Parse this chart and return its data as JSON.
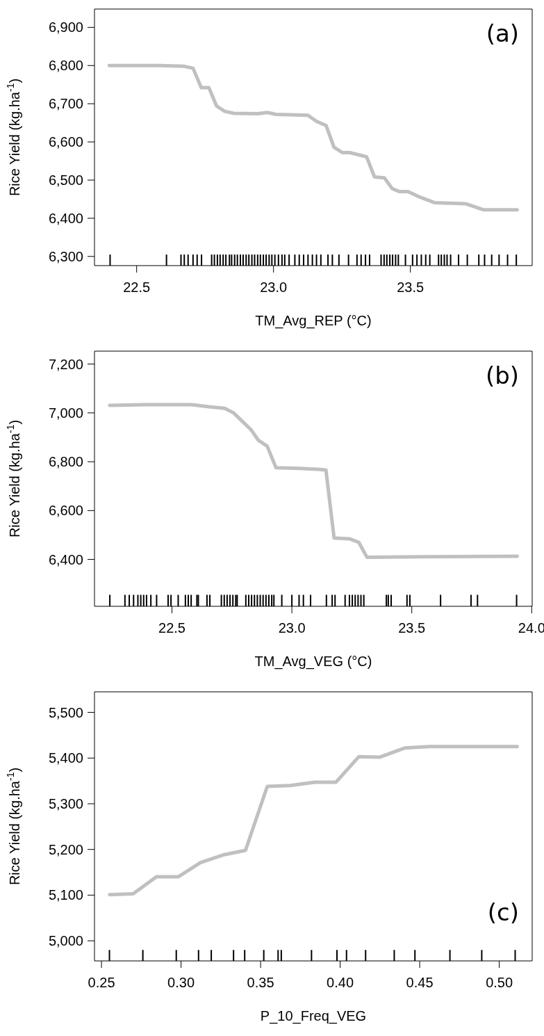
{
  "chart_data": [
    {
      "type": "line",
      "xlabel": "TM_Avg_REP (°C)",
      "ylabel": "Rice Yield (kg.ha$^{-1}$)",
      "annotations": [
        "(a)"
      ],
      "xlim": [
        22.346,
        23.945
      ],
      "ylim": [
        6276,
        6948
      ],
      "xticks": [
        22.5,
        {
          "value": 23,
          "label": "23.0"
        },
        23.5
      ],
      "yticks": [
        {
          "value": 6300,
          "label": "6,300"
        },
        {
          "value": 6400,
          "label": "6,400"
        },
        {
          "value": 6500,
          "label": "6,500"
        },
        {
          "value": 6600,
          "label": "6,600"
        },
        {
          "value": 6700,
          "label": "6,700"
        },
        {
          "value": 6800,
          "label": "6,800"
        },
        {
          "value": 6900,
          "label": "6,900"
        }
      ],
      "line_style": "solid",
      "series": [
        {
          "color": "#c0c0c0",
          "x": [
            22.4,
            22.584,
            22.674,
            22.706,
            22.736,
            22.764,
            22.792,
            22.822,
            22.854,
            22.944,
            22.977,
            23.009,
            23.125,
            23.157,
            23.192,
            23.221,
            23.251,
            23.279,
            23.34,
            23.369,
            23.405,
            23.433,
            23.459,
            23.491,
            23.536,
            23.588,
            23.703,
            23.768,
            23.89
          ],
          "values": [
            6800,
            6800,
            6798,
            6793,
            6742,
            6742,
            6694,
            6680,
            6675,
            6674,
            6677,
            6672,
            6670,
            6654,
            6643,
            6586,
            6572,
            6572,
            6561,
            6508,
            6506,
            6478,
            6470,
            6470,
            6455,
            6441,
            6438,
            6422,
            6422
          ]
        },
        {
          "type": "bar",
          "color": "#000000",
          "x": [
            22.403,
            22.609,
            22.662,
            22.674,
            22.688,
            22.706,
            22.721,
            22.737,
            22.774,
            22.784,
            22.795,
            22.805,
            22.816,
            22.826,
            22.839,
            22.847,
            22.858,
            22.868,
            22.879,
            22.889,
            22.9,
            22.91,
            22.921,
            22.931,
            22.942,
            22.952,
            22.963,
            22.973,
            22.984,
            22.994,
            23.005,
            23.018,
            23.031,
            23.041,
            23.057,
            23.078,
            23.094,
            23.11,
            23.126,
            23.142,
            23.157,
            23.173,
            23.199,
            23.215,
            23.239,
            23.274,
            23.305,
            23.32,
            23.336,
            23.351,
            23.393,
            23.404,
            23.414,
            23.425,
            23.435,
            23.446,
            23.456,
            23.482,
            23.508,
            23.524,
            23.54,
            23.556,
            23.571,
            23.603,
            23.613,
            23.624,
            23.634,
            23.647,
            23.676,
            23.708,
            23.75,
            23.771,
            23.797,
            23.824,
            23.855,
            23.887
          ],
          "base": [
            6276,
            6276,
            6276,
            6276,
            6276,
            6276,
            6276,
            6276,
            6276,
            6276,
            6276,
            6276,
            6276,
            6276,
            6276,
            6276,
            6276,
            6276,
            6276,
            6276,
            6276,
            6276,
            6276,
            6276,
            6276,
            6276,
            6276,
            6276,
            6276,
            6276,
            6276,
            6276,
            6276,
            6276,
            6276,
            6276,
            6276,
            6276,
            6276,
            6276,
            6276,
            6276,
            6276,
            6276,
            6276,
            6276,
            6276,
            6276,
            6276,
            6276,
            6276,
            6276,
            6276,
            6276,
            6276,
            6276,
            6276,
            6276,
            6276,
            6276,
            6276,
            6276,
            6276,
            6276,
            6276,
            6276,
            6276,
            6276,
            6276,
            6276,
            6276,
            6276,
            6276,
            6276,
            6276,
            6276
          ],
          "values": [
            29,
            29,
            29,
            29,
            29,
            29,
            29,
            29,
            29,
            29,
            29,
            29,
            29,
            29,
            29,
            29,
            29,
            29,
            29,
            29,
            29,
            29,
            29,
            29,
            29,
            29,
            29,
            29,
            29,
            29,
            29,
            29,
            29,
            29,
            29,
            29,
            29,
            29,
            29,
            29,
            29,
            29,
            29,
            29,
            29,
            29,
            29,
            29,
            29,
            29,
            29,
            29,
            29,
            29,
            29,
            29,
            29,
            29,
            29,
            29,
            29,
            29,
            29,
            29,
            29,
            29,
            29,
            29,
            29,
            29,
            29,
            29,
            29,
            29,
            29,
            29
          ]
        }
      ]
    },
    {
      "type": "line",
      "xlabel": "TM_Avg_VEG (°C)",
      "ylabel": "Rice Yield (kg.ha$^{-1}$)",
      "annotations": [
        "(b)"
      ],
      "xlim": [
        22.177,
        24.002
      ],
      "ylim": [
        6208,
        7253
      ],
      "xticks": [
        22.5,
        {
          "value": 23,
          "label": "23.0"
        },
        23.5,
        {
          "value": 24,
          "label": "24.0"
        }
      ],
      "yticks": [
        {
          "value": 6400,
          "label": "6,400"
        },
        {
          "value": 6600,
          "label": "6,600"
        },
        {
          "value": 6800,
          "label": "6,800"
        },
        {
          "value": 7000,
          "label": "7,000"
        },
        {
          "value": 7200,
          "label": "7,200"
        }
      ],
      "line_style": "solid",
      "series": [
        {
          "color": "#c0c0c0",
          "x": [
            22.24,
            22.39,
            22.581,
            22.654,
            22.72,
            22.757,
            22.83,
            22.86,
            22.897,
            22.934,
            23.022,
            23.11,
            23.142,
            23.176,
            23.242,
            23.279,
            23.313,
            23.536,
            23.94
          ],
          "values": [
            7031,
            7034,
            7034,
            7025,
            7019,
            7000,
            6931,
            6888,
            6864,
            6775,
            6773,
            6769,
            6766,
            6488,
            6484,
            6470,
            6409,
            6411,
            6413
          ]
        },
        {
          "type": "bar",
          "color": "#000000",
          "x": [
            22.241,
            22.304,
            22.322,
            22.34,
            22.358,
            22.37,
            22.382,
            22.394,
            22.412,
            22.436,
            22.484,
            22.496,
            22.526,
            22.556,
            22.568,
            22.58,
            22.604,
            22.61,
            22.646,
            22.658,
            22.706,
            22.718,
            22.73,
            22.742,
            22.754,
            22.766,
            22.772,
            22.808,
            22.82,
            22.832,
            22.844,
            22.856,
            22.868,
            22.88,
            22.892,
            22.904,
            22.916,
            22.925,
            22.958,
            23.0,
            23.03,
            23.048,
            23.078,
            23.144,
            23.168,
            23.18,
            23.222,
            23.24,
            23.252,
            23.264,
            23.276,
            23.288,
            23.3,
            23.394,
            23.402,
            23.414,
            23.48,
            23.492,
            23.62,
            23.747,
            23.774,
            23.937
          ],
          "base": [
            6208,
            6208,
            6208,
            6208,
            6208,
            6208,
            6208,
            6208,
            6208,
            6208,
            6208,
            6208,
            6208,
            6208,
            6208,
            6208,
            6208,
            6208,
            6208,
            6208,
            6208,
            6208,
            6208,
            6208,
            6208,
            6208,
            6208,
            6208,
            6208,
            6208,
            6208,
            6208,
            6208,
            6208,
            6208,
            6208,
            6208,
            6208,
            6208,
            6208,
            6208,
            6208,
            6208,
            6208,
            6208,
            6208,
            6208,
            6208,
            6208,
            6208,
            6208,
            6208,
            6208,
            6208,
            6208,
            6208,
            6208,
            6208,
            6208,
            6208,
            6208,
            6208
          ],
          "values": [
            47,
            47,
            47,
            47,
            47,
            47,
            47,
            47,
            47,
            47,
            47,
            47,
            47,
            47,
            47,
            47,
            47,
            47,
            47,
            47,
            47,
            47,
            47,
            47,
            47,
            47,
            47,
            47,
            47,
            47,
            47,
            47,
            47,
            47,
            47,
            47,
            47,
            47,
            47,
            47,
            47,
            47,
            47,
            47,
            47,
            47,
            47,
            47,
            47,
            47,
            47,
            47,
            47,
            47,
            47,
            47,
            47,
            47,
            47,
            47,
            47,
            47
          ]
        }
      ]
    },
    {
      "type": "line",
      "xlabel": "P_10_Freq_VEG",
      "ylabel": "Rice Yield (kg.ha$^{-1}$)",
      "annotations": [
        "(c)"
      ],
      "xlim": [
        0.2456,
        0.5207
      ],
      "ylim": [
        4956,
        5545
      ],
      "xticks": [
        0.25,
        {
          "value": 0.3,
          "label": "0.30"
        },
        0.35,
        {
          "value": 0.4,
          "label": "0.40"
        },
        0.45,
        {
          "value": 0.5,
          "label": "0.50"
        }
      ],
      "yticks": [
        {
          "value": 5000,
          "label": "5,000"
        },
        {
          "value": 5100,
          "label": "5,100"
        },
        {
          "value": 5200,
          "label": "5,200"
        },
        {
          "value": 5300,
          "label": "5,300"
        },
        {
          "value": 5400,
          "label": "5,400"
        },
        {
          "value": 5500,
          "label": "5,500"
        }
      ],
      "line_style": "solid",
      "series": [
        {
          "color": "#c0c0c0",
          "x": [
            0.2551,
            0.2699,
            0.2845,
            0.2982,
            0.3122,
            0.3265,
            0.3405,
            0.3542,
            0.3686,
            0.3841,
            0.3973,
            0.4117,
            0.425,
            0.4405,
            0.456,
            0.5113
          ],
          "values": [
            5101,
            5103,
            5140,
            5140,
            5171,
            5188,
            5198,
            5338,
            5340,
            5347,
            5347,
            5403,
            5402,
            5422,
            5425,
            5425
          ]
        },
        {
          "type": "bar",
          "color": "#000000",
          "x": [
            0.255,
            0.276,
            0.297,
            0.311,
            0.319,
            0.333,
            0.34,
            0.352,
            0.361,
            0.363,
            0.382,
            0.398,
            0.404,
            0.416,
            0.434,
            0.447,
            0.469,
            0.489,
            0.51
          ],
          "base": [
            4956,
            4956,
            4956,
            4956,
            4956,
            4956,
            4956,
            4956,
            4956,
            4956,
            4956,
            4956,
            4956,
            4956,
            4956,
            4956,
            4956,
            4956,
            4956
          ],
          "values": [
            24,
            24,
            24,
            24,
            24,
            24,
            24,
            24,
            24,
            24,
            24,
            24,
            24,
            24,
            24,
            24,
            24,
            24,
            24
          ]
        }
      ]
    }
  ]
}
